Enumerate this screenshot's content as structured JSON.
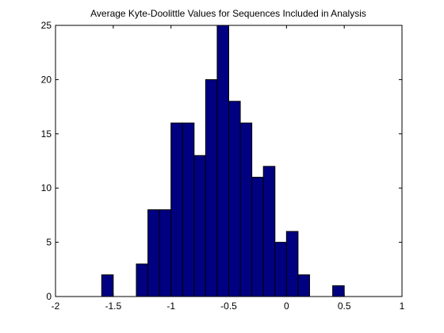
{
  "chart_data": {
    "type": "bar",
    "title": "Average Kyte-Doolittle Values for Sequences Included in Analysis",
    "xlabel": "",
    "ylabel": "",
    "xlim": [
      -2,
      1
    ],
    "ylim": [
      0,
      25
    ],
    "xticks": [
      -2,
      -1.5,
      -1,
      -0.5,
      0,
      0.5,
      1
    ],
    "xtick_labels": [
      "-2",
      "-1.5",
      "-1",
      "-0.5",
      "0",
      "0.5",
      "1"
    ],
    "yticks": [
      0,
      5,
      10,
      15,
      20,
      25
    ],
    "ytick_labels": [
      "0",
      "5",
      "10",
      "15",
      "20",
      "25"
    ],
    "grid": false,
    "bar_color": "#000080",
    "bins": [
      {
        "x0": -1.6,
        "x1": -1.5,
        "count": 2
      },
      {
        "x0": -1.5,
        "x1": -1.4,
        "count": 0
      },
      {
        "x0": -1.4,
        "x1": -1.3,
        "count": 0
      },
      {
        "x0": -1.3,
        "x1": -1.2,
        "count": 3
      },
      {
        "x0": -1.2,
        "x1": -1.1,
        "count": 8
      },
      {
        "x0": -1.1,
        "x1": -1.0,
        "count": 8
      },
      {
        "x0": -1.0,
        "x1": -0.9,
        "count": 16
      },
      {
        "x0": -0.9,
        "x1": -0.8,
        "count": 16
      },
      {
        "x0": -0.8,
        "x1": -0.7,
        "count": 13
      },
      {
        "x0": -0.7,
        "x1": -0.6,
        "count": 20
      },
      {
        "x0": -0.6,
        "x1": -0.5,
        "count": 25
      },
      {
        "x0": -0.5,
        "x1": -0.4,
        "count": 18
      },
      {
        "x0": -0.4,
        "x1": -0.3,
        "count": 16
      },
      {
        "x0": -0.3,
        "x1": -0.2,
        "count": 11
      },
      {
        "x0": -0.2,
        "x1": -0.1,
        "count": 12
      },
      {
        "x0": -0.1,
        "x1": 0.0,
        "count": 5
      },
      {
        "x0": 0.0,
        "x1": 0.1,
        "count": 6
      },
      {
        "x0": 0.1,
        "x1": 0.2,
        "count": 2
      },
      {
        "x0": 0.2,
        "x1": 0.3,
        "count": 0
      },
      {
        "x0": 0.3,
        "x1": 0.4,
        "count": 0
      },
      {
        "x0": 0.4,
        "x1": 0.5,
        "count": 1
      }
    ]
  }
}
